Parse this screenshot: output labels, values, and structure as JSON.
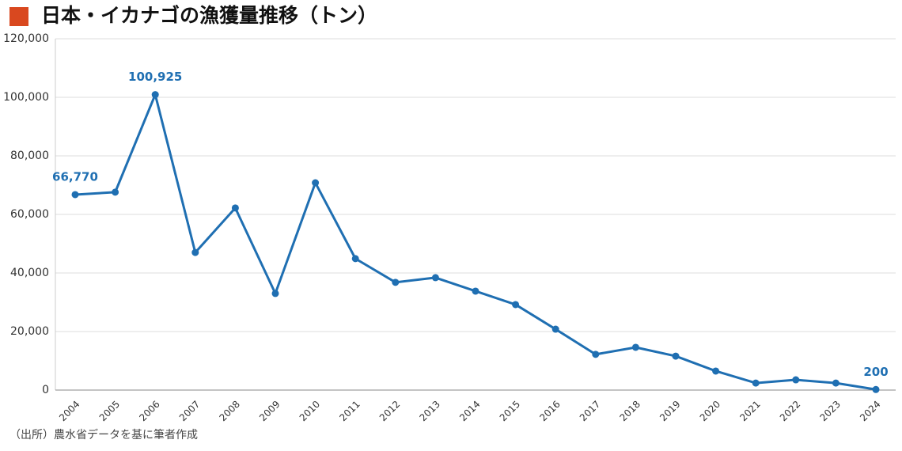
{
  "chart_data": {
    "type": "line",
    "title": "日本・イカナゴの漁獲量推移（トン）",
    "source": "（出所）農水省データを基に筆者作成",
    "categories": [
      "2004",
      "2005",
      "2006",
      "2007",
      "2008",
      "2009",
      "2010",
      "2011",
      "2012",
      "2013",
      "2014",
      "2015",
      "2016",
      "2017",
      "2018",
      "2019",
      "2020",
      "2021",
      "2022",
      "2023",
      "2024"
    ],
    "series": [
      {
        "color": "#1f6fb2",
        "values": [
          66770,
          67600,
          100925,
          47000,
          62200,
          33000,
          70800,
          44900,
          36800,
          38400,
          33800,
          29200,
          20800,
          12200,
          14600,
          11600,
          6500,
          2400,
          3500,
          2400,
          200
        ],
        "value_labels": [
          "66,770",
          null,
          "100,925",
          null,
          null,
          null,
          null,
          null,
          null,
          null,
          null,
          null,
          null,
          null,
          null,
          null,
          null,
          null,
          null,
          null,
          "200"
        ]
      }
    ],
    "ylim": [
      0,
      120000
    ],
    "yticks": [
      0,
      {
        "value": 20000,
        "label": "20,000"
      },
      {
        "value": 40000,
        "label": "40,000"
      },
      {
        "value": 60000,
        "label": "60,000"
      },
      {
        "value": 80000,
        "label": "80,000"
      },
      {
        "value": 100000,
        "label": "100,000"
      },
      {
        "value": 120000,
        "label": "120,000"
      }
    ],
    "grid": true,
    "accent_color": "#d9481f"
  }
}
